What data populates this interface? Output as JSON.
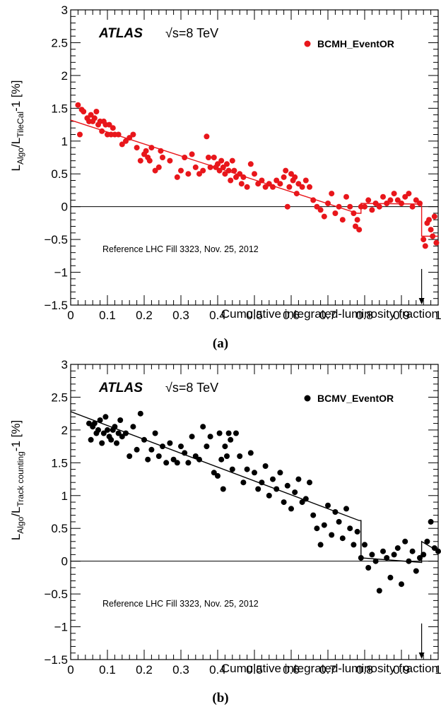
{
  "chart_data": [
    {
      "type": "scatter",
      "panel_label": "(a)",
      "atlas_label": "ATLAS",
      "energy_label": "√s=8 TeV",
      "xlabel": "Cumulative integrated-luminosity fraction",
      "ylabel_main": "L",
      "ylabel_sub1": "Algo",
      "ylabel_mid": "/L",
      "ylabel_sub2": "TileCal",
      "ylabel_tail": "-1 [%]",
      "annotation": "Reference LHC Fill 3323, Nov. 25, 2012",
      "xlim": [
        0,
        1
      ],
      "ylim": [
        -1.5,
        3
      ],
      "xticks": [
        "0",
        "0.1",
        "0.2",
        "0.3",
        "0.4",
        "0.5",
        "0.6",
        "0.7",
        "0.8",
        "0.9",
        "1"
      ],
      "yticks": [
        "−1.5",
        "−1",
        "−0.5",
        "0",
        "0.5",
        "1",
        "1.5",
        "2",
        "2.5",
        "3"
      ],
      "color": "#e8161b",
      "arrow_x": 0.955,
      "series": [
        {
          "name": "BCMH_EventOR",
          "x": [
            0.02,
            0.025,
            0.03,
            0.035,
            0.045,
            0.05,
            0.055,
            0.06,
            0.065,
            0.07,
            0.075,
            0.08,
            0.085,
            0.09,
            0.095,
            0.1,
            0.105,
            0.11,
            0.115,
            0.12,
            0.13,
            0.14,
            0.15,
            0.16,
            0.17,
            0.18,
            0.19,
            0.2,
            0.205,
            0.21,
            0.215,
            0.22,
            0.23,
            0.24,
            0.245,
            0.25,
            0.27,
            0.29,
            0.3,
            0.31,
            0.32,
            0.33,
            0.34,
            0.35,
            0.36,
            0.37,
            0.375,
            0.38,
            0.39,
            0.395,
            0.4,
            0.405,
            0.41,
            0.415,
            0.42,
            0.425,
            0.43,
            0.435,
            0.44,
            0.445,
            0.45,
            0.46,
            0.465,
            0.47,
            0.48,
            0.49,
            0.5,
            0.51,
            0.52,
            0.53,
            0.54,
            0.55,
            0.56,
            0.57,
            0.58,
            0.585,
            0.59,
            0.595,
            0.6,
            0.605,
            0.61,
            0.615,
            0.62,
            0.63,
            0.64,
            0.65,
            0.66,
            0.67,
            0.68,
            0.69,
            0.7,
            0.71,
            0.72,
            0.73,
            0.74,
            0.75,
            0.76,
            0.77,
            0.775,
            0.78,
            0.785,
            0.79,
            0.8,
            0.81,
            0.82,
            0.83,
            0.84,
            0.85,
            0.86,
            0.87,
            0.88,
            0.89,
            0.9,
            0.91,
            0.92,
            0.93,
            0.94,
            0.95,
            0.96,
            0.965,
            0.97,
            0.975,
            0.98,
            0.985,
            0.99,
            0.995
          ],
          "y": [
            1.55,
            1.1,
            1.48,
            1.45,
            1.35,
            1.3,
            1.4,
            1.3,
            1.35,
            1.45,
            1.25,
            1.3,
            1.15,
            1.3,
            1.25,
            1.1,
            1.25,
            1.1,
            1.2,
            1.1,
            1.1,
            0.95,
            1.0,
            1.05,
            1.1,
            0.9,
            0.7,
            0.8,
            0.85,
            0.75,
            0.7,
            0.9,
            0.55,
            0.6,
            0.85,
            0.75,
            0.7,
            0.45,
            0.55,
            0.75,
            0.5,
            0.8,
            0.6,
            0.5,
            0.55,
            1.07,
            0.75,
            0.6,
            0.75,
            0.6,
            0.65,
            0.55,
            0.7,
            0.6,
            0.5,
            0.65,
            0.55,
            0.4,
            0.7,
            0.55,
            0.45,
            0.5,
            0.35,
            0.45,
            0.3,
            0.65,
            0.5,
            0.35,
            0.4,
            0.3,
            0.35,
            0.3,
            0.4,
            0.35,
            0.45,
            0.55,
            0.0,
            0.3,
            0.5,
            0.4,
            0.45,
            0.2,
            0.35,
            0.3,
            0.4,
            0.3,
            0.1,
            0.0,
            -0.05,
            -0.15,
            0.05,
            0.2,
            -0.1,
            0.0,
            -0.2,
            0.15,
            0.0,
            -0.1,
            -0.3,
            -0.2,
            -0.35,
            0.0,
            0.0,
            0.1,
            -0.05,
            0.05,
            0.0,
            0.15,
            0.05,
            0.1,
            0.2,
            0.1,
            0.05,
            0.15,
            0.2,
            0.0,
            0.1,
            0.05,
            -0.5,
            -0.6,
            -0.25,
            -0.2,
            -0.35,
            -0.45,
            -0.15,
            -0.55
          ]
        }
      ],
      "fit_line": {
        "x": [
          0.0,
          0.78,
          0.78,
          0.79,
          0.79,
          0.955,
          0.955,
          1.0
        ],
        "y": [
          1.32,
          -0.1,
          -0.1,
          -0.1,
          0.05,
          0.04,
          -0.45,
          -0.45
        ]
      }
    },
    {
      "type": "scatter",
      "panel_label": "(b)",
      "atlas_label": "ATLAS",
      "energy_label": "√s=8 TeV",
      "xlabel": "Cumulative integrated-luminosity fraction",
      "ylabel_main": "L",
      "ylabel_sub1": "Algo",
      "ylabel_mid": "/L",
      "ylabel_sub2": "Track counting",
      "ylabel_tail": "-1 [%]",
      "annotation": "Reference LHC Fill 3323, Nov. 25, 2012",
      "xlim": [
        0,
        1
      ],
      "ylim": [
        -1.5,
        3
      ],
      "xticks": [
        "0",
        "0.1",
        "0.2",
        "0.3",
        "0.4",
        "0.5",
        "0.6",
        "0.7",
        "0.8",
        "0.9",
        "1"
      ],
      "yticks": [
        "−1.5",
        "−1",
        "−0.5",
        "0",
        "0.5",
        "1",
        "1.5",
        "2",
        "2.5",
        "3"
      ],
      "color": "#000000",
      "arrow_x": 0.955,
      "series": [
        {
          "name": "BCMV_EventOR",
          "x": [
            0.05,
            0.055,
            0.06,
            0.065,
            0.07,
            0.075,
            0.08,
            0.085,
            0.09,
            0.095,
            0.1,
            0.105,
            0.11,
            0.115,
            0.12,
            0.125,
            0.13,
            0.135,
            0.14,
            0.15,
            0.16,
            0.17,
            0.18,
            0.19,
            0.2,
            0.21,
            0.22,
            0.23,
            0.24,
            0.25,
            0.26,
            0.27,
            0.28,
            0.29,
            0.3,
            0.31,
            0.32,
            0.33,
            0.34,
            0.35,
            0.36,
            0.37,
            0.38,
            0.39,
            0.4,
            0.405,
            0.41,
            0.415,
            0.42,
            0.425,
            0.43,
            0.435,
            0.44,
            0.45,
            0.46,
            0.47,
            0.48,
            0.49,
            0.5,
            0.51,
            0.52,
            0.53,
            0.54,
            0.55,
            0.56,
            0.57,
            0.58,
            0.59,
            0.6,
            0.61,
            0.62,
            0.63,
            0.64,
            0.65,
            0.66,
            0.67,
            0.68,
            0.69,
            0.7,
            0.71,
            0.72,
            0.73,
            0.74,
            0.75,
            0.76,
            0.77,
            0.78,
            0.79,
            0.8,
            0.81,
            0.82,
            0.83,
            0.84,
            0.85,
            0.86,
            0.87,
            0.88,
            0.89,
            0.9,
            0.91,
            0.92,
            0.93,
            0.94,
            0.95,
            0.96,
            0.97,
            0.98,
            0.99,
            1.0
          ],
          "y": [
            2.1,
            1.85,
            2.05,
            2.1,
            1.95,
            2.0,
            2.15,
            1.8,
            1.95,
            2.2,
            2.0,
            1.9,
            1.85,
            2.0,
            2.05,
            1.8,
            1.95,
            2.15,
            1.9,
            1.95,
            1.6,
            2.05,
            1.7,
            2.25,
            1.85,
            1.55,
            1.7,
            1.95,
            1.6,
            1.75,
            1.5,
            1.8,
            1.55,
            1.5,
            1.75,
            1.65,
            1.5,
            1.9,
            1.6,
            1.55,
            2.05,
            1.75,
            1.9,
            1.35,
            1.3,
            1.95,
            1.55,
            1.1,
            1.75,
            1.6,
            1.95,
            1.85,
            1.4,
            1.95,
            1.6,
            1.2,
            1.4,
            1.65,
            1.35,
            1.1,
            1.2,
            1.45,
            1.0,
            1.25,
            1.1,
            1.35,
            0.9,
            1.15,
            0.8,
            1.05,
            1.25,
            0.9,
            0.95,
            1.2,
            0.7,
            0.5,
            0.25,
            0.55,
            0.85,
            0.4,
            0.75,
            0.6,
            0.35,
            0.8,
            0.5,
            0.25,
            0.45,
            0.05,
            0.25,
            -0.1,
            0.1,
            0.0,
            -0.45,
            0.15,
            0.05,
            -0.25,
            0.1,
            0.2,
            -0.35,
            0.3,
            0.0,
            0.15,
            -0.15,
            0.05,
            0.1,
            0.3,
            0.6,
            0.2,
            0.15
          ]
        }
      ],
      "fit_line": {
        "x": [
          0.0,
          0.785,
          0.785,
          0.79,
          0.79,
          0.955,
          0.955,
          1.0
        ],
        "y": [
          2.28,
          0.62,
          0.62,
          0.62,
          0.05,
          -0.02,
          0.3,
          0.15
        ]
      }
    }
  ]
}
